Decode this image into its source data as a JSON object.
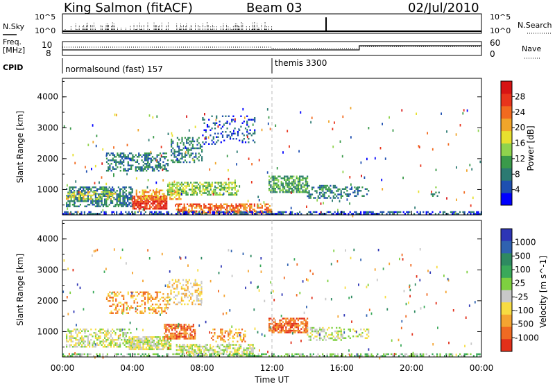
{
  "header": {
    "station": "King Salmon (fitACF)",
    "beam": "Beam 03",
    "date": "02/Jul/2010"
  },
  "top_panels": {
    "nsky_label": "N.Sky",
    "nsky_ticks": [
      "10^5",
      "10^0"
    ],
    "nsearch_label": "N.Search",
    "freq_label": "Freq.",
    "freq_unit": "[MHz]",
    "freq_ticks": [
      "10",
      "8"
    ],
    "nave_label": "Nave",
    "nave_ticks": [
      "60",
      "0"
    ],
    "cpid_label": "CPID",
    "cpid_segments": [
      {
        "name": "normalsound (fast) 157",
        "start": 0.0
      },
      {
        "name": "themis 3300",
        "start": 12.0
      }
    ]
  },
  "x_ticks": [
    "00:00",
    "04:00",
    "08:00",
    "12:00",
    "16:00",
    "20:00",
    "00:00"
  ],
  "x_label": "Time UT",
  "y_label": "Slant Range [km]",
  "y_ticks": [
    "1000",
    "2000",
    "3000",
    "4000"
  ],
  "power_colorbar": {
    "label": "Power [dB]",
    "ticks": [
      "4",
      "8",
      "12",
      "16",
      "20",
      "24",
      "28"
    ],
    "colors": [
      "#0000ff",
      "#1e4fb0",
      "#2c7a72",
      "#3a9a4a",
      "#8fd34d",
      "#e7e02f",
      "#f0a52a",
      "#f26a1f",
      "#e8341c",
      "#d71414"
    ]
  },
  "velocity_colorbar": {
    "label": "Velocity [m s^-1]",
    "ticks": [
      "1000",
      "500",
      "100",
      "25",
      "-25",
      "-100",
      "-500",
      "-1000"
    ],
    "colors": [
      "#2d35b5",
      "#2f62b0",
      "#2e8a61",
      "#3aa95a",
      "#7ed040",
      "#c8c8c8",
      "#f7dc42",
      "#f5a431",
      "#f06a22",
      "#e2301a"
    ]
  },
  "chart_data": {
    "type": "heatmap",
    "x_range_hours": [
      0,
      24
    ],
    "y_range_km": [
      180,
      4600
    ],
    "power_clusters": [
      {
        "t0": 0.2,
        "t1": 4.0,
        "r0": 450,
        "r1": 1100,
        "level": 2,
        "density": 0.6
      },
      {
        "t0": 0.2,
        "t1": 3.0,
        "r0": 700,
        "r1": 950,
        "level": 5,
        "density": 0.5
      },
      {
        "t0": 2.5,
        "t1": 6.0,
        "r0": 1600,
        "r1": 2200,
        "level": 2,
        "density": 0.45
      },
      {
        "t0": 4.0,
        "t1": 6.0,
        "r0": 400,
        "r1": 800,
        "level": 8,
        "density": 0.85
      },
      {
        "t0": 4.2,
        "t1": 6.8,
        "r0": 700,
        "r1": 1000,
        "level": 6,
        "density": 0.6
      },
      {
        "t0": 6.2,
        "t1": 8.0,
        "r0": 1900,
        "r1": 2700,
        "level": 2,
        "density": 0.45
      },
      {
        "t0": 6.0,
        "t1": 10.0,
        "r0": 850,
        "r1": 1250,
        "level": 4,
        "density": 0.6
      },
      {
        "t0": 6.5,
        "t1": 12.0,
        "r0": 250,
        "r1": 550,
        "level": 7,
        "density": 0.65
      },
      {
        "t0": 8.0,
        "t1": 11.0,
        "r0": 2500,
        "r1": 3400,
        "level": 1,
        "density": 0.18
      },
      {
        "t0": 11.8,
        "t1": 14.0,
        "r0": 900,
        "r1": 1450,
        "level": 3,
        "density": 0.7
      },
      {
        "t0": 14.0,
        "t1": 16.0,
        "r0": 750,
        "r1": 1150,
        "level": 2,
        "density": 0.45
      },
      {
        "t0": 16.0,
        "t1": 17.5,
        "r0": 800,
        "r1": 1100,
        "level": 2,
        "density": 0.3
      },
      {
        "t0": 21.0,
        "t1": 21.6,
        "r0": 800,
        "r1": 1100,
        "level": 3,
        "density": 0.3
      },
      {
        "t0": 0.0,
        "t1": 24.0,
        "r0": 200,
        "r1": 300,
        "level": 1,
        "density": 0.55
      }
    ],
    "velocity_clusters": [
      {
        "t0": 0.2,
        "t1": 4.0,
        "r0": 500,
        "r1": 1100,
        "level": 5,
        "density": 0.55
      },
      {
        "t0": 3.8,
        "t1": 6.2,
        "r0": 450,
        "r1": 850,
        "level": 5,
        "density": 0.8
      },
      {
        "t0": 5.8,
        "t1": 7.6,
        "r0": 800,
        "r1": 1250,
        "level": 8,
        "density": 0.7
      },
      {
        "t0": 6.5,
        "t1": 11.0,
        "r0": 250,
        "r1": 600,
        "level": 5,
        "density": 0.6
      },
      {
        "t0": 8.5,
        "t1": 10.5,
        "r0": 700,
        "r1": 1100,
        "level": 7,
        "density": 0.4
      },
      {
        "t0": 2.5,
        "t1": 6.0,
        "r0": 1600,
        "r1": 2300,
        "level": 7,
        "density": 0.35
      },
      {
        "t0": 6.0,
        "t1": 8.0,
        "r0": 1900,
        "r1": 2700,
        "level": 6,
        "density": 0.35
      },
      {
        "t0": 11.8,
        "t1": 14.0,
        "r0": 950,
        "r1": 1450,
        "level": 8,
        "density": 0.75
      },
      {
        "t0": 14.0,
        "t1": 16.0,
        "r0": 750,
        "r1": 1150,
        "level": 5,
        "density": 0.45
      },
      {
        "t0": 16.0,
        "t1": 17.5,
        "r0": 800,
        "r1": 1100,
        "level": 5,
        "density": 0.3
      },
      {
        "t0": 0.0,
        "t1": 24.0,
        "r0": 200,
        "r1": 300,
        "level": 4,
        "density": 0.5
      }
    ]
  }
}
